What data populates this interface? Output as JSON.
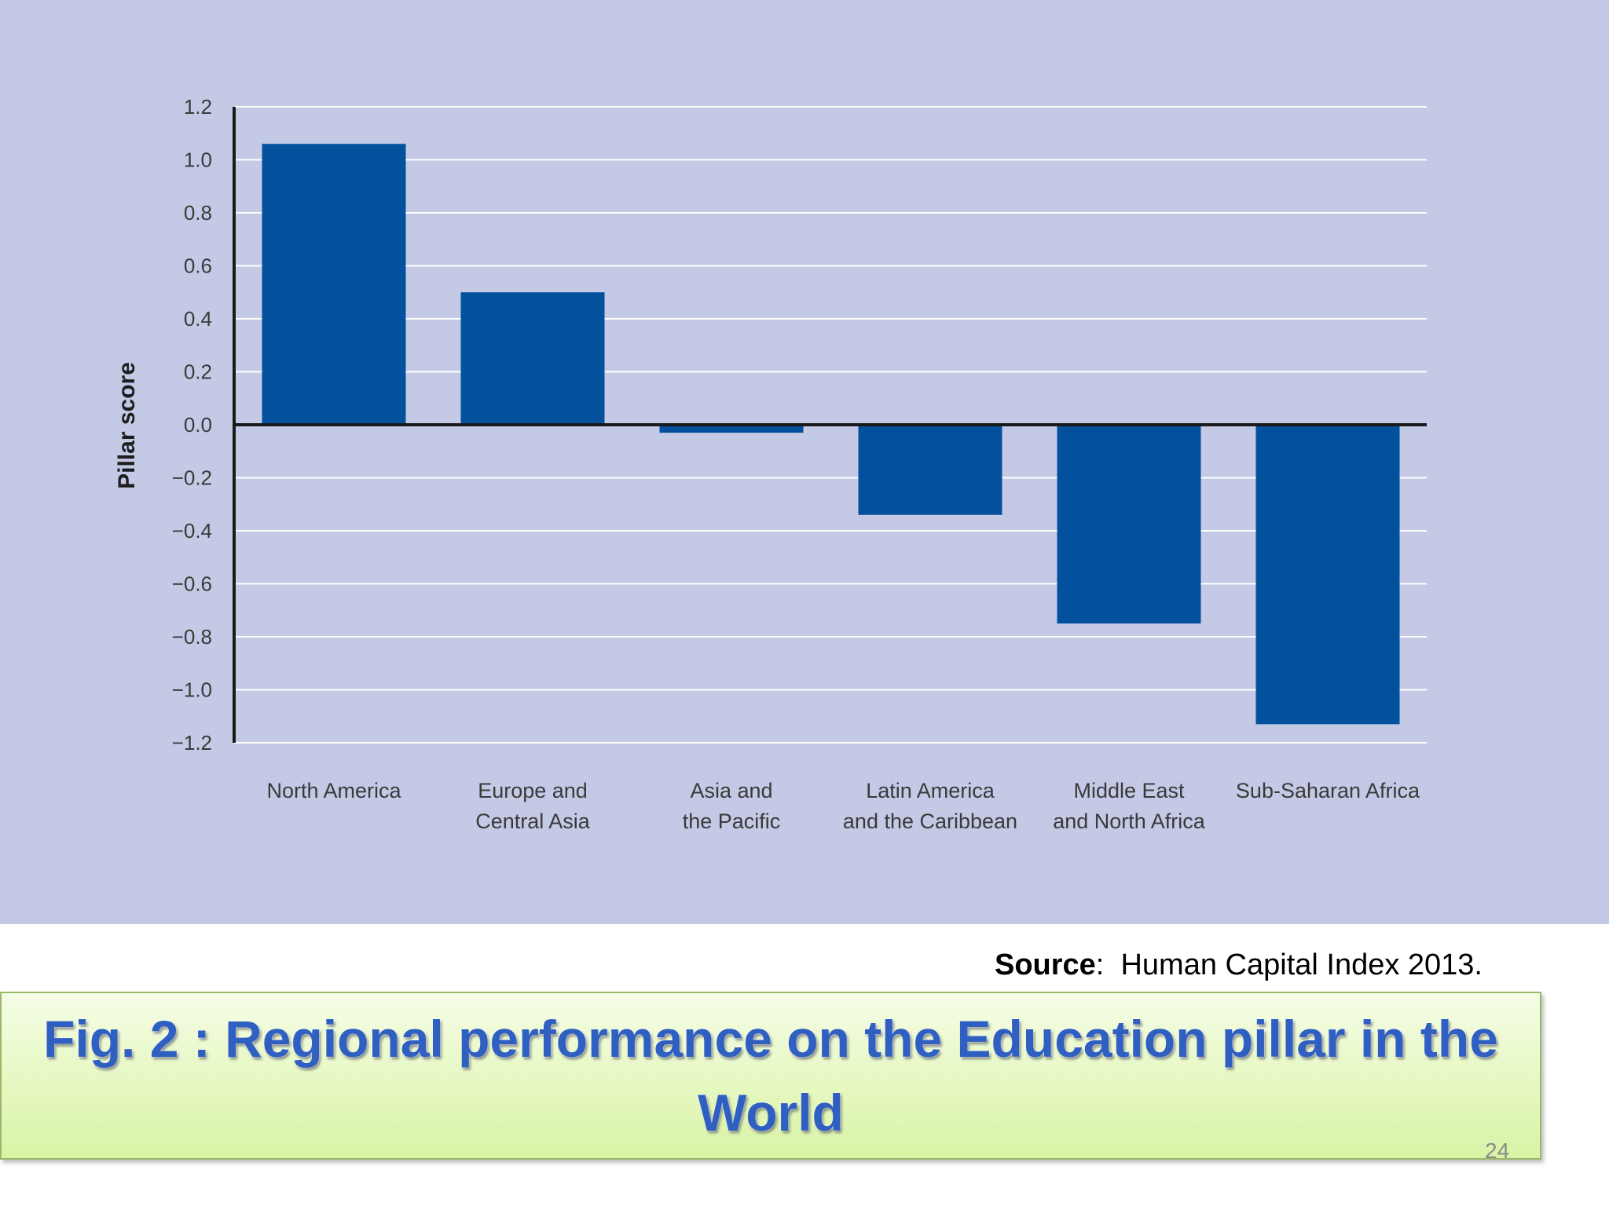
{
  "chart_data": {
    "type": "bar",
    "categories": [
      [
        "North America"
      ],
      [
        "Europe and",
        "Central Asia"
      ],
      [
        "Asia and",
        "the Pacific"
      ],
      [
        "Latin America",
        "and the Caribbean"
      ],
      [
        "Middle East",
        "and North Africa"
      ],
      [
        "Sub-Saharan Africa"
      ]
    ],
    "values": [
      1.06,
      0.5,
      -0.03,
      -0.34,
      -0.75,
      -1.13
    ],
    "ylabel": "Pillar score",
    "ylim": [
      -1.2,
      1.2
    ],
    "yticks": [
      "1.2",
      "1.0",
      "0.8",
      "0.6",
      "0.4",
      "0.2",
      "0.0",
      "−0.2",
      "−0.4",
      "−0.6",
      "−0.8",
      "−1.0",
      "−1.2"
    ],
    "ytick_values": [
      1.2,
      1.0,
      0.8,
      0.6,
      0.4,
      0.2,
      0.0,
      -0.2,
      -0.4,
      -0.6,
      -0.8,
      -1.0,
      -1.2
    ],
    "grid": true,
    "colors": {
      "bar": "#03519c",
      "panel_background": "#c4c9e6",
      "grid": "#ffffff",
      "axis": "#1a1a1a"
    }
  },
  "source": {
    "label": "Source",
    "separator": ":",
    "text": "Human Capital Index 2013."
  },
  "caption": {
    "text": "Fig. 2 : Regional performance on the Education pillar in the World"
  },
  "page_number": "24"
}
